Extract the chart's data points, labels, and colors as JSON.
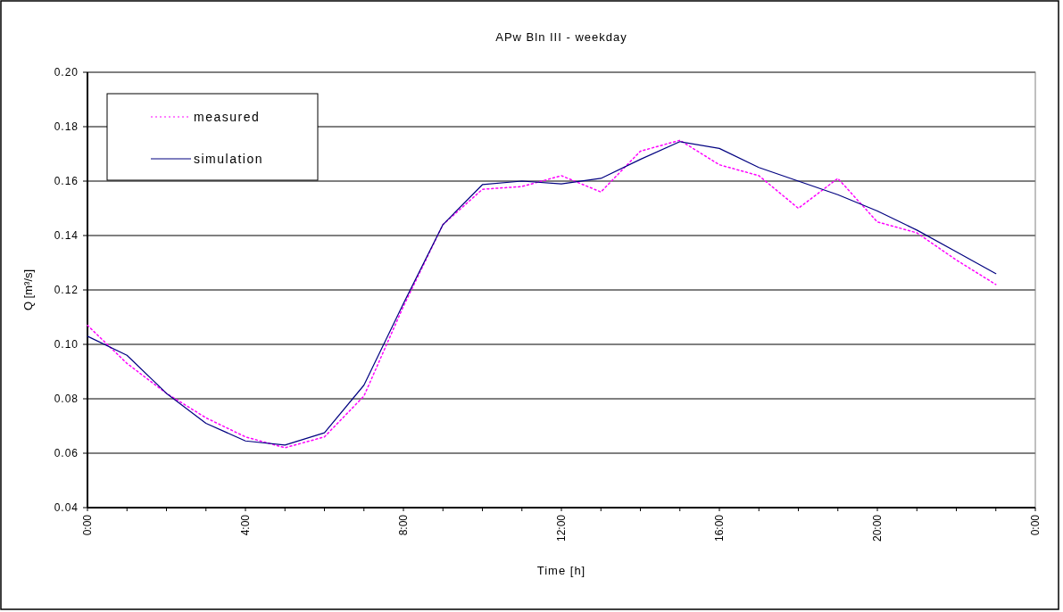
{
  "chart_data": {
    "type": "line",
    "title": "APw Bln III - weekday",
    "xlabel": "Time [h]",
    "ylabel": "Q [m³/s]",
    "x": [
      0,
      1,
      2,
      3,
      4,
      5,
      6,
      7,
      8,
      9,
      10,
      11,
      12,
      13,
      14,
      15,
      16,
      17,
      18,
      19,
      20,
      21,
      22,
      23
    ],
    "series": [
      {
        "name": "measured",
        "color": "#ff00ff",
        "line_style": "dotted",
        "values": [
          0.107,
          0.093,
          0.082,
          0.073,
          0.066,
          0.062,
          0.066,
          0.081,
          0.114,
          0.144,
          0.157,
          0.158,
          0.162,
          0.156,
          0.171,
          0.175,
          0.166,
          0.162,
          0.15,
          0.161,
          0.145,
          0.141,
          0.131,
          0.122
        ]
      },
      {
        "name": "simulation",
        "color": "#000080",
        "line_style": "solid",
        "values": [
          0.103,
          0.096,
          0.082,
          0.071,
          0.0645,
          0.063,
          0.0675,
          0.085,
          0.115,
          0.144,
          0.1587,
          0.16,
          0.159,
          0.161,
          0.168,
          0.1745,
          0.172,
          0.165,
          0.16,
          0.155,
          0.149,
          0.142,
          0.134,
          0.126
        ]
      }
    ],
    "xlim": [
      0,
      24
    ],
    "xticks": [
      {
        "value": 0,
        "label": "0:00"
      },
      {
        "value": 1,
        "label": null
      },
      {
        "value": 2,
        "label": null
      },
      {
        "value": 3,
        "label": null
      },
      {
        "value": 4,
        "label": "4:00"
      },
      {
        "value": 5,
        "label": null
      },
      {
        "value": 6,
        "label": null
      },
      {
        "value": 7,
        "label": null
      },
      {
        "value": 8,
        "label": "8:00"
      },
      {
        "value": 9,
        "label": null
      },
      {
        "value": 10,
        "label": null
      },
      {
        "value": 11,
        "label": null
      },
      {
        "value": 12,
        "label": "12:00"
      },
      {
        "value": 13,
        "label": null
      },
      {
        "value": 14,
        "label": null
      },
      {
        "value": 15,
        "label": null
      },
      {
        "value": 16,
        "label": "16:00"
      },
      {
        "value": 17,
        "label": null
      },
      {
        "value": 18,
        "label": null
      },
      {
        "value": 19,
        "label": null
      },
      {
        "value": 20,
        "label": "20:00"
      },
      {
        "value": 21,
        "label": null
      },
      {
        "value": 22,
        "label": null
      },
      {
        "value": 23,
        "label": null
      },
      {
        "value": 24,
        "label": "0:00"
      }
    ],
    "ylim": [
      0.04,
      0.2
    ],
    "yticks": [
      {
        "value": 0.04,
        "label": "0.04"
      },
      {
        "value": 0.06,
        "label": "0.06"
      },
      {
        "value": 0.08,
        "label": "0.08"
      },
      {
        "value": 0.1,
        "label": "0.10"
      },
      {
        "value": 0.12,
        "label": "0.12"
      },
      {
        "value": 0.14,
        "label": "0.14"
      },
      {
        "value": 0.16,
        "label": "0.16"
      },
      {
        "value": 0.18,
        "label": "0.18"
      },
      {
        "value": 0.2,
        "label": "0.20"
      }
    ],
    "grid": "y",
    "legend": "top left"
  }
}
